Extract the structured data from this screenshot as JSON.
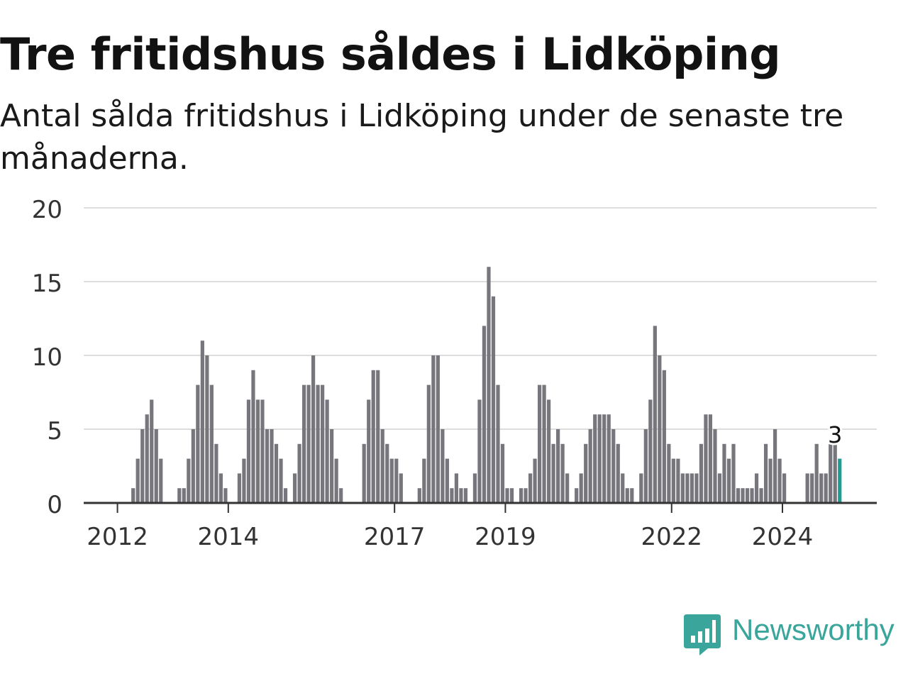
{
  "title": "Tre fritidshus såldes i Lidköping",
  "subtitle": "Antal sålda fritidshus i Lidköping under de senaste tre månaderna.",
  "brand": {
    "name": "Newsworthy",
    "color": "#3aa59b",
    "icon": "newsworthy-chart-bubble-icon"
  },
  "colors": {
    "bar": "#76767c",
    "highlight": "#1f9d94",
    "grid": "#dddddd",
    "axis": "#333333"
  },
  "chart_data": {
    "type": "bar",
    "x_start": "2011-06",
    "x_end": "2025-02",
    "x_unit": "month",
    "ylim": [
      0,
      20
    ],
    "y_ticks": [
      0,
      5,
      10,
      15,
      20
    ],
    "x_ticks": [
      {
        "label": "2012",
        "x": "2012-01"
      },
      {
        "label": "2014",
        "x": "2014-01"
      },
      {
        "label": "2017",
        "x": "2017-01"
      },
      {
        "label": "2019",
        "x": "2019-01"
      },
      {
        "label": "2022",
        "x": "2022-01"
      },
      {
        "label": "2024",
        "x": "2024-01"
      }
    ],
    "annotation": {
      "label": "3",
      "x": "2024-12"
    },
    "highlight_last": true,
    "grid": true,
    "values": [
      0,
      0,
      0,
      0,
      0,
      0,
      0,
      0,
      0,
      0,
      1,
      3,
      5,
      6,
      7,
      5,
      3,
      0,
      0,
      0,
      1,
      1,
      3,
      5,
      8,
      11,
      10,
      8,
      4,
      2,
      1,
      0,
      0,
      2,
      3,
      7,
      9,
      7,
      7,
      5,
      5,
      4,
      3,
      1,
      0,
      2,
      4,
      8,
      8,
      10,
      8,
      8,
      7,
      5,
      3,
      1,
      0,
      0,
      0,
      0,
      4,
      7,
      9,
      9,
      5,
      4,
      3,
      3,
      2,
      0,
      0,
      0,
      1,
      3,
      8,
      10,
      10,
      5,
      3,
      1,
      2,
      1,
      1,
      0,
      2,
      7,
      12,
      16,
      14,
      8,
      4,
      1,
      1,
      0,
      1,
      1,
      2,
      3,
      8,
      8,
      7,
      4,
      5,
      4,
      2,
      0,
      1,
      2,
      4,
      5,
      6,
      6,
      6,
      6,
      5,
      4,
      2,
      1,
      1,
      0,
      2,
      5,
      7,
      12,
      10,
      9,
      4,
      3,
      3,
      2,
      2,
      2,
      2,
      4,
      6,
      6,
      5,
      2,
      4,
      3,
      4,
      1,
      1,
      1,
      1,
      2,
      1,
      4,
      3,
      5,
      3,
      2,
      0,
      0,
      0,
      0,
      2,
      2,
      4,
      2,
      2,
      4,
      4,
      3
    ]
  }
}
